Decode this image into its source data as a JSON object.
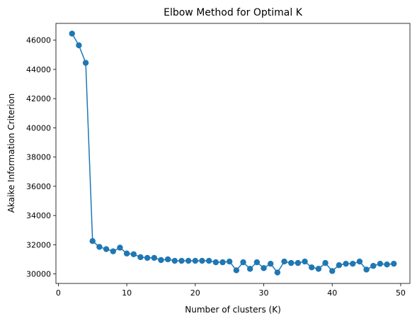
{
  "chart_data": {
    "type": "line",
    "title": "Elbow Method for Optimal K",
    "xlabel": "Number of clusters (K)",
    "ylabel": "Akaike Information Criterion",
    "xlim": [
      -0.35,
      51.35
    ],
    "ylim": [
      29350,
      47150
    ],
    "xticks": [
      0,
      10,
      20,
      30,
      40,
      50
    ],
    "yticks": [
      30000,
      32000,
      34000,
      36000,
      38000,
      40000,
      42000,
      44000,
      46000
    ],
    "grid": false,
    "color": "#1f77b4",
    "marker": "circle",
    "series": [
      {
        "x": [
          2,
          3,
          4,
          5,
          6,
          7,
          8,
          9,
          10,
          11,
          12,
          13,
          14,
          15,
          16,
          17,
          18,
          19,
          20,
          21,
          22,
          23,
          24,
          25,
          26,
          27,
          28,
          29,
          30,
          31,
          32,
          33,
          34,
          35,
          36,
          37,
          38,
          39,
          40,
          41,
          42,
          43,
          44,
          45,
          46,
          47,
          48,
          49
        ],
        "values": [
          46450,
          45650,
          44450,
          32250,
          31850,
          31700,
          31550,
          31800,
          31400,
          31350,
          31150,
          31100,
          31100,
          30950,
          31000,
          30900,
          30900,
          30900,
          30900,
          30900,
          30900,
          30800,
          30800,
          30850,
          30250,
          30800,
          30350,
          30800,
          30400,
          30700,
          30100,
          30850,
          30750,
          30750,
          30850,
          30450,
          30350,
          30750,
          30200,
          30600,
          30700,
          30700,
          30850,
          30300,
          30550,
          30700,
          30650,
          30700
        ]
      }
    ]
  }
}
